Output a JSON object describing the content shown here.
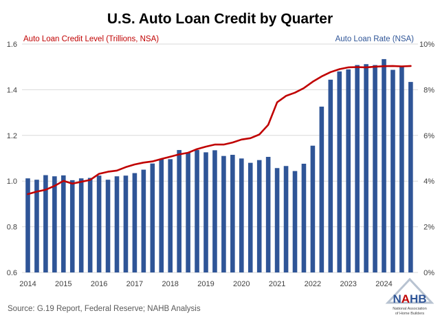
{
  "chart_data": {
    "type": "bar+line",
    "title": "U.S. Auto Loan Credit by Quarter",
    "left_axis_label": "Auto Loan Credit Level (Trillions, NSA)",
    "right_axis_label": "Auto Loan Rate (NSA)",
    "left_ylim": [
      0.6,
      1.6
    ],
    "left_ticks": [
      "0.6",
      "0.8",
      "1.0",
      "1.2",
      "1.4",
      "1.6"
    ],
    "right_ylim": [
      0,
      10
    ],
    "right_ticks": [
      "0%",
      "2%",
      "4%",
      "6%",
      "8%",
      "10%"
    ],
    "x_tick_labels": [
      "2014",
      "2015",
      "2016",
      "2017",
      "2018",
      "2019",
      "2020",
      "2021",
      "2022",
      "2023",
      "2024"
    ],
    "quarters": [
      "2014Q1",
      "2014Q2",
      "2014Q3",
      "2014Q4",
      "2015Q1",
      "2015Q2",
      "2015Q3",
      "2015Q4",
      "2016Q1",
      "2016Q2",
      "2016Q3",
      "2016Q4",
      "2017Q1",
      "2017Q2",
      "2017Q3",
      "2017Q4",
      "2018Q1",
      "2018Q2",
      "2018Q3",
      "2018Q4",
      "2019Q1",
      "2019Q2",
      "2019Q3",
      "2019Q4",
      "2020Q1",
      "2020Q2",
      "2020Q3",
      "2020Q4",
      "2021Q1",
      "2021Q2",
      "2021Q3",
      "2021Q4",
      "2022Q1",
      "2022Q2",
      "2022Q3",
      "2022Q4",
      "2023Q1",
      "2023Q2",
      "2023Q3",
      "2023Q4",
      "2024Q1",
      "2024Q2",
      "2024Q3",
      "2024Q4"
    ],
    "series": [
      {
        "name": "Auto Loan Rate (NSA)",
        "type": "bar",
        "axis": "right",
        "color": "#2F5597",
        "values": [
          4.12,
          4.06,
          4.26,
          4.21,
          4.25,
          4.04,
          4.12,
          4.14,
          4.24,
          4.06,
          4.21,
          4.24,
          4.35,
          4.5,
          4.77,
          4.97,
          4.96,
          5.36,
          5.24,
          5.36,
          5.26,
          5.35,
          5.1,
          5.15,
          4.99,
          4.8,
          4.92,
          5.06,
          4.57,
          4.66,
          4.44,
          4.76,
          5.55,
          7.26,
          8.44,
          8.8,
          8.89,
          9.08,
          9.12,
          9.08,
          9.34,
          8.87,
          9.04,
          8.34
        ]
      },
      {
        "name": "Auto Loan Credit Level (Trillions, NSA)",
        "type": "line",
        "axis": "left",
        "color": "#C00000",
        "values": [
          0.943,
          0.954,
          0.962,
          0.979,
          1.001,
          0.989,
          0.997,
          1.005,
          1.032,
          1.041,
          1.046,
          1.061,
          1.073,
          1.081,
          1.086,
          1.097,
          1.107,
          1.117,
          1.124,
          1.14,
          1.151,
          1.16,
          1.16,
          1.169,
          1.182,
          1.188,
          1.204,
          1.246,
          1.345,
          1.373,
          1.387,
          1.407,
          1.435,
          1.458,
          1.477,
          1.49,
          1.498,
          1.499,
          1.498,
          1.501,
          1.503,
          1.504,
          1.502,
          1.504
        ]
      }
    ],
    "source": "Source: G.19 Report, Federal Reserve; NAHB Analysis",
    "logo": {
      "name": "NAHB",
      "subtext": [
        "National Association",
        "of Home Builders"
      ]
    }
  }
}
